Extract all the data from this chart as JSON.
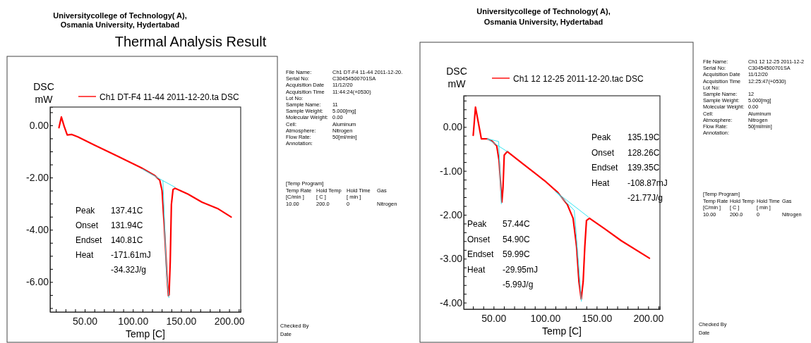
{
  "chart_data": [
    {
      "type": "line",
      "title": "Thermal Analysis Result",
      "subtitle": "Universitycollege of Technology( A),\nOsmania University, Hydertabad",
      "xlabel": "Temp  [C]",
      "ylabel": "DSC\nmW",
      "legend": "top",
      "xlim": [
        14,
        212
      ],
      "ylim": [
        -7.15,
        0.7
      ],
      "xticks": [
        {
          "value": 20,
          "label": null
        },
        {
          "value": 30,
          "label": null
        },
        {
          "value": 40,
          "label": null
        },
        {
          "value": 50,
          "label": "50.00"
        },
        {
          "value": 60,
          "label": null
        },
        {
          "value": 70,
          "label": null
        },
        {
          "value": 80,
          "label": null
        },
        {
          "value": 90,
          "label": null
        },
        {
          "value": 100,
          "label": "100.00"
        },
        {
          "value": 110,
          "label": null
        },
        {
          "value": 120,
          "label": null
        },
        {
          "value": 130,
          "label": null
        },
        {
          "value": 140,
          "label": null
        },
        {
          "value": 150,
          "label": "150.00"
        },
        {
          "value": 160,
          "label": null
        },
        {
          "value": 170,
          "label": null
        },
        {
          "value": 180,
          "label": null
        },
        {
          "value": 190,
          "label": null
        },
        {
          "value": 200,
          "label": "200.00"
        },
        {
          "value": 210,
          "label": null
        }
      ],
      "yticks": [
        {
          "value": 0.5,
          "label": null
        },
        {
          "value": 0,
          "label": "0.00"
        },
        {
          "value": -0.5,
          "label": null
        },
        {
          "value": -1,
          "label": null
        },
        {
          "value": -1.5,
          "label": null
        },
        {
          "value": -2,
          "label": "-2.00"
        },
        {
          "value": -2.5,
          "label": null
        },
        {
          "value": -3,
          "label": null
        },
        {
          "value": -3.5,
          "label": null
        },
        {
          "value": -4,
          "label": "-4.00"
        },
        {
          "value": -4.5,
          "label": null
        },
        {
          "value": -5,
          "label": null
        },
        {
          "value": -5.5,
          "label": null
        },
        {
          "value": -6,
          "label": "-6.00"
        },
        {
          "value": -6.5,
          "label": null
        },
        {
          "value": -7,
          "label": null
        }
      ],
      "series": [
        {
          "name": "Ch1 DT-F4 11-44 2011-12-20.ta  DSC",
          "color": "#ff0000",
          "x": [
            23.2,
            25.7,
            28.6,
            31.8,
            36.6,
            42.7,
            59.7,
            84.1,
            108.4,
            123,
            127.9,
            130.3,
            132.7,
            135.2,
            136.9,
            137.6,
            138.8,
            140,
            141.7,
            143.7,
            157.1,
            171.7,
            188.7,
            202.1
          ],
          "values": [
            -0.09,
            0.32,
            -0.04,
            -0.37,
            -0.35,
            -0.44,
            -0.75,
            -1.18,
            -1.62,
            -1.93,
            -2.1,
            -2.5,
            -3.9,
            -5.66,
            -6.53,
            -6.49,
            -5.22,
            -3.03,
            -2.46,
            -2.41,
            -2.63,
            -2.94,
            -3.2,
            -3.51
          ]
        },
        {
          "color": "#33e6f2",
          "x": [
            109.6,
            131.2,
            143.7
          ],
          "values": [
            -1.67,
            -2.12,
            -2.37
          ]
        },
        {
          "color": "#33e6f2",
          "x": [
            131.2,
            134.8,
            137.4
          ],
          "values": [
            -2.12,
            -5.6,
            -6.6
          ]
        }
      ],
      "annotations": [
        "Peak\t137.41C\nOnset\t131.94C\nEndset\t140.81C\nHeat\t-171.61mJ\n\t-34.32J/g",
        "File Name:\tCh1 DT-F4 11-44 2011-12-20.\nSerial No:\tC30454500701SA\nAcquisition Date\t11/12/20\nAcquisition Time\t11:44:24(+0530)\nLot No:\nSample Name:\t11\nSample Weight:\t5.000[mg]\nMolecular Weight:\t0.00\nCell:\tAluminum\nAtmosphere:\tNitrogen\nFlow Rate:\t50[ml/min]\nAnnotation:",
        "[Temp Program]\nTemp Rate\tHold Temp\tHold Time\tGas\n[C/min ]\t[  C  ]\t[  min  ]\n10.00\t200.0\t0\tNitrogen",
        "Checked By\nDate"
      ]
    },
    {
      "type": "line",
      "title": "Universitycollege of Technology( A),\nOsmania University, Hydertabad",
      "xlabel": "Temp  [C]",
      "ylabel": "DSC\nmW",
      "legend": "top",
      "xlim": [
        21,
        211.4
      ],
      "ylim": [
        -4.15,
        0.71
      ],
      "xticks": [
        {
          "value": 30,
          "label": null
        },
        {
          "value": 40,
          "label": null
        },
        {
          "value": 50,
          "label": "50.00"
        },
        {
          "value": 60,
          "label": null
        },
        {
          "value": 70,
          "label": null
        },
        {
          "value": 80,
          "label": null
        },
        {
          "value": 90,
          "label": null
        },
        {
          "value": 100,
          "label": "100.00"
        },
        {
          "value": 110,
          "label": null
        },
        {
          "value": 120,
          "label": null
        },
        {
          "value": 130,
          "label": null
        },
        {
          "value": 140,
          "label": null
        },
        {
          "value": 150,
          "label": "150.00"
        },
        {
          "value": 160,
          "label": null
        },
        {
          "value": 170,
          "label": null
        },
        {
          "value": 180,
          "label": null
        },
        {
          "value": 190,
          "label": null
        },
        {
          "value": 200,
          "label": "200.00"
        },
        {
          "value": 210,
          "label": null
        }
      ],
      "yticks": [
        {
          "value": 0.6,
          "label": null
        },
        {
          "value": 0.4,
          "label": null
        },
        {
          "value": 0.2,
          "label": null
        },
        {
          "value": 0,
          "label": "0.00"
        },
        {
          "value": -0.2,
          "label": null
        },
        {
          "value": -0.4,
          "label": null
        },
        {
          "value": -0.6,
          "label": null
        },
        {
          "value": -0.8,
          "label": null
        },
        {
          "value": -1,
          "label": "-1.00"
        },
        {
          "value": -1.2,
          "label": null
        },
        {
          "value": -1.4,
          "label": null
        },
        {
          "value": -1.6,
          "label": null
        },
        {
          "value": -1.8,
          "label": null
        },
        {
          "value": -2,
          "label": "-2.00"
        },
        {
          "value": -2.2,
          "label": null
        },
        {
          "value": -2.4,
          "label": null
        },
        {
          "value": -2.6,
          "label": null
        },
        {
          "value": -2.8,
          "label": null
        },
        {
          "value": -3,
          "label": "-3.00"
        },
        {
          "value": -3.2,
          "label": null
        },
        {
          "value": -3.4,
          "label": null
        },
        {
          "value": -3.6,
          "label": null
        },
        {
          "value": -3.8,
          "label": null
        },
        {
          "value": -4,
          "label": "-4.00"
        }
      ],
      "series": [
        {
          "name": "Ch1 12 12-25 2011-12-20.tac  DSC",
          "color": "#ff0000",
          "x": [
            30.2,
            32.4,
            34.7,
            38.1,
            43.8,
            48.4,
            53,
            55.2,
            57.1,
            58,
            59.1,
            60.3,
            63.2,
            78,
            100.8,
            112.2,
            121.4,
            127.1,
            130.5,
            132.8,
            135,
            136.9,
            138.5,
            140.1,
            143,
            157.8,
            173.8,
            201.2
          ],
          "values": [
            -0.19,
            0.45,
            0.16,
            -0.27,
            -0.27,
            -0.32,
            -0.43,
            -0.75,
            -1.39,
            -1.71,
            -1.39,
            -0.64,
            -0.56,
            -0.83,
            -1.25,
            -1.49,
            -1.76,
            -2.08,
            -2.72,
            -3.52,
            -3.92,
            -3.52,
            -2.72,
            -2.13,
            -2.08,
            -2.32,
            -2.59,
            -2.99
          ]
        },
        {
          "color": "#33e6f2",
          "x": [
            43.8,
            63.2
          ],
          "values": [
            -0.27,
            -0.56
          ]
        },
        {
          "color": "#33e6f2",
          "x": [
            43.8,
            54.9,
            57.5
          ],
          "values": [
            -0.27,
            -0.33,
            -1.75
          ]
        },
        {
          "color": "#33e6f2",
          "x": [
            110,
            141.9
          ],
          "values": [
            -1.47,
            -2.05
          ]
        },
        {
          "color": "#33e6f2",
          "x": [
            110,
            128.3,
            135.2
          ],
          "values": [
            -1.47,
            -1.9,
            -3.97
          ]
        }
      ],
      "annotations": [
        "Peak\t135.19C\nOnset\t128.26C\nEndset\t139.35C\nHeat\t-108.87mJ\n\t-21.77J/g",
        "Peak\t57.44C\nOnset\t54.90C\nEndset\t59.99C\nHeat\t-29.95mJ\n\t-5.99J/g",
        "File Name:\tCh1 12 12-25 2011-12-2\nSerial No:\tC30454500701SA\nAcquisition Date\t11/12/20\nAcquisition Time\t12:25:47(+0530)\nLot No:\nSample Name:\t12\nSample Weight:\t5.000[mg]\nMolecular Weight:\t0.00\nCell:\tAluminum\nAtmosphere:\tNitrogen\nFlow Rate:\t50[ml/min]\nAnnotation:",
        "[Temp Program]\nTemp Rate\tHold Temp\tHold Time\tGas\n[C/min ]\t[  C  ]\t[  min  ]\n10.00\t200.0\t0\tNitrogen",
        "Checked By\nDate"
      ]
    }
  ]
}
